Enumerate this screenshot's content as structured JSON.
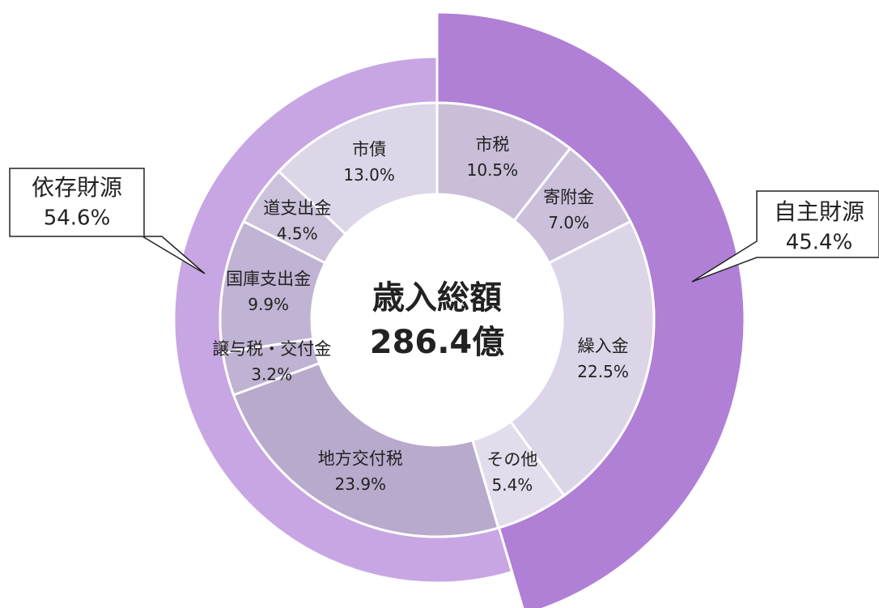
{
  "chart_data": {
    "type": "sunburst",
    "center_title": "歳入総額",
    "center_value": "286.4億",
    "outer": {
      "categories": [
        "自主財源",
        "依存財源"
      ],
      "values": [
        45.4,
        54.6
      ],
      "value_labels": [
        "45.4%",
        "54.6%"
      ],
      "colors": [
        "#b07fd6",
        "#c8a6e3"
      ]
    },
    "inner": {
      "categories": [
        "市税",
        "寄附金",
        "繰入金",
        "その他",
        "地方交付税",
        "譲与税・交付金",
        "国庫支出金",
        "道支出金",
        "市債"
      ],
      "values": [
        10.5,
        7.0,
        22.5,
        5.4,
        23.9,
        3.2,
        9.9,
        4.5,
        13.0
      ],
      "value_labels": [
        "10.5%",
        "7.0%",
        "22.5%",
        "5.4%",
        "23.9%",
        "3.2%",
        "9.9%",
        "4.5%",
        "13.0%"
      ],
      "colors": [
        "#c9bdd8",
        "#cbbfda",
        "#dcd4e7",
        "#e3dcec",
        "#b8aacc",
        "#bfb2d2",
        "#c0b3d3",
        "#ccc2dc",
        "#ddd5e8"
      ]
    }
  }
}
